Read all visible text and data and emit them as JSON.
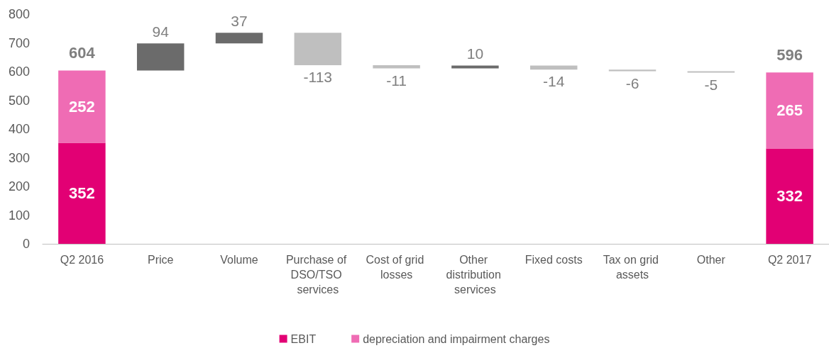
{
  "chart_data": {
    "type": "bar",
    "categories": [
      "Q2 2016",
      "Price",
      "Volume",
      "Purchase of DSO/TSO services",
      "Cost of grid losses",
      "Other distribution services",
      "Fixed costs",
      "Tax on grid assets",
      "Other",
      "Q2 2017"
    ],
    "series": [
      {
        "name": "EBIT",
        "color": "#e20074",
        "values": [
          352,
          null,
          null,
          null,
          null,
          null,
          null,
          null,
          null,
          332
        ]
      },
      {
        "name": "depreciation and impairment charges",
        "color": "#ef6cb4",
        "values": [
          252,
          null,
          null,
          null,
          null,
          null,
          null,
          null,
          null,
          265
        ]
      },
      {
        "colors": [
          null,
          "#6b6b6b",
          "#6b6b6b",
          "#bfbfbf",
          "#bfbfbf",
          "#6b6b6b",
          "#bfbfbf",
          "#bfbfbf",
          "#bfbfbf",
          null
        ],
        "base": [
          null,
          604,
          698,
          735,
          622,
          611,
          621,
          607,
          601,
          null
        ],
        "values": [
          null,
          94,
          37,
          -113,
          -11,
          10,
          -14,
          -6,
          -5,
          null
        ]
      }
    ],
    "stacked": true,
    "totals": [
      "604",
      null,
      null,
      null,
      null,
      null,
      null,
      null,
      null,
      "596"
    ],
    "data_labels": true,
    "ylim": [
      0,
      800
    ],
    "yticks": [
      0,
      100,
      200,
      300,
      400,
      500,
      600,
      700,
      800
    ],
    "grid": false,
    "legend": "bottom"
  }
}
